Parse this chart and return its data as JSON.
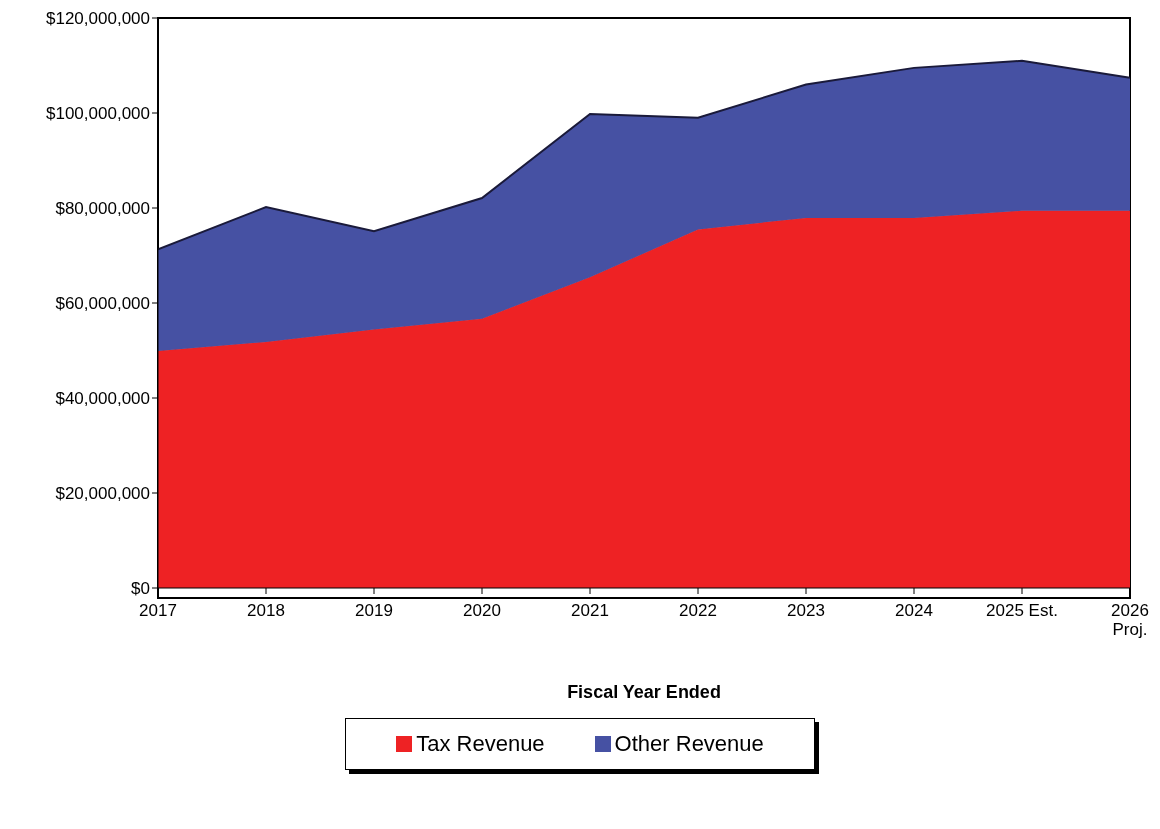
{
  "chart_data": {
    "type": "area",
    "stacked": true,
    "xlabel": "Fiscal Year Ended",
    "categories": [
      "2017",
      "2018",
      "2019",
      "2020",
      "2021",
      "2022",
      "2023",
      "2024",
      "2025 Est.",
      "2026\nProj."
    ],
    "series": [
      {
        "name": "Tax Revenue",
        "color": "#ee2224",
        "values": [
          49900000,
          51800000,
          54400000,
          56700000,
          65400000,
          75500000,
          77900000,
          77900000,
          79400000,
          79400000
        ]
      },
      {
        "name": "Other Revenue",
        "color": "#4651a3",
        "values": [
          21400000,
          28400000,
          20700000,
          25400000,
          34400000,
          23500000,
          28100000,
          31600000,
          31600000,
          28000000
        ]
      }
    ],
    "ylim": [
      0,
      120000000
    ],
    "yticks": [
      {
        "value": 0,
        "label": "$0"
      },
      {
        "value": 20000000,
        "label": "$20,000,000"
      },
      {
        "value": 40000000,
        "label": "$40,000,000"
      },
      {
        "value": 60000000,
        "label": "$60,000,000"
      },
      {
        "value": 80000000,
        "label": "$80,000,000"
      },
      {
        "value": 100000000,
        "label": "$100,000,000"
      },
      {
        "value": 120000000,
        "label": "$120,000,000"
      }
    ],
    "grid": false,
    "legend": "bottom"
  }
}
